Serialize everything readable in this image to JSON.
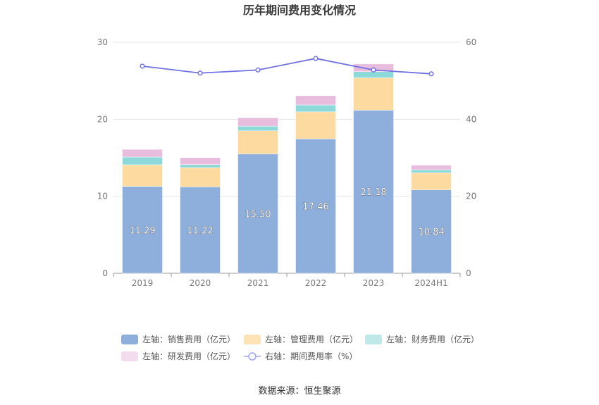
{
  "chart_data": {
    "type": "bar",
    "title": "历年期间费用变化情况",
    "categories": [
      "2019",
      "2020",
      "2021",
      "2022",
      "2023",
      "2024H1"
    ],
    "left_axis": {
      "min": 0,
      "max": 30,
      "ticks": [
        "0",
        "10",
        "20",
        "30"
      ]
    },
    "right_axis": {
      "min": 0,
      "max": 60,
      "ticks": [
        "0",
        "20",
        "40",
        "60"
      ]
    },
    "series": [
      {
        "name": "左轴：销售费用（亿元）",
        "type": "bar",
        "axis": "left",
        "stack": "fees",
        "color": "#8eaedc",
        "values": [
          11.29,
          11.22,
          15.5,
          17.46,
          21.18,
          10.84
        ],
        "labels": [
          "11.29",
          "11.22",
          "15.50",
          "17.46",
          "21.18",
          "10.84"
        ]
      },
      {
        "name": "左轴：管理费用（亿元）",
        "type": "bar",
        "axis": "left",
        "stack": "fees",
        "color": "#fddba0",
        "values": [
          2.8,
          2.5,
          3.0,
          3.5,
          4.2,
          2.2
        ]
      },
      {
        "name": "左轴：财务费用（亿元）",
        "type": "bar",
        "axis": "left",
        "stack": "fees",
        "color": "#8dd8d8",
        "values": [
          1.0,
          0.4,
          0.6,
          0.9,
          0.8,
          0.4
        ]
      },
      {
        "name": "左轴：研发费用（亿元）",
        "type": "bar",
        "axis": "left",
        "stack": "fees",
        "color": "#e8bcdc",
        "values": [
          1.0,
          0.9,
          1.1,
          1.2,
          1.0,
          0.6
        ]
      },
      {
        "name": "右轴：期间费用率（%）",
        "type": "line",
        "axis": "right",
        "color": "#6f72e0",
        "values": [
          53.8,
          52.0,
          52.8,
          55.8,
          52.8,
          51.8
        ]
      }
    ],
    "legend_position": "bottom",
    "grid": true
  },
  "legend": [
    {
      "label": "左轴：销售费用（亿元）",
      "color": "#8eaedc",
      "kind": "rect"
    },
    {
      "label": "左轴：管理费用（亿元）",
      "color": "#fde3b6",
      "kind": "rect"
    },
    {
      "label": "左轴：财务费用（亿元）",
      "color": "#bfe9e9",
      "kind": "rect"
    },
    {
      "label": "左轴：研发费用（亿元）",
      "color": "#f2dcee",
      "kind": "rect"
    },
    {
      "label": "右轴：期间费用率（%）",
      "color": "#9fa5f0",
      "kind": "line"
    }
  ],
  "source": "数据来源：恒生聚源"
}
